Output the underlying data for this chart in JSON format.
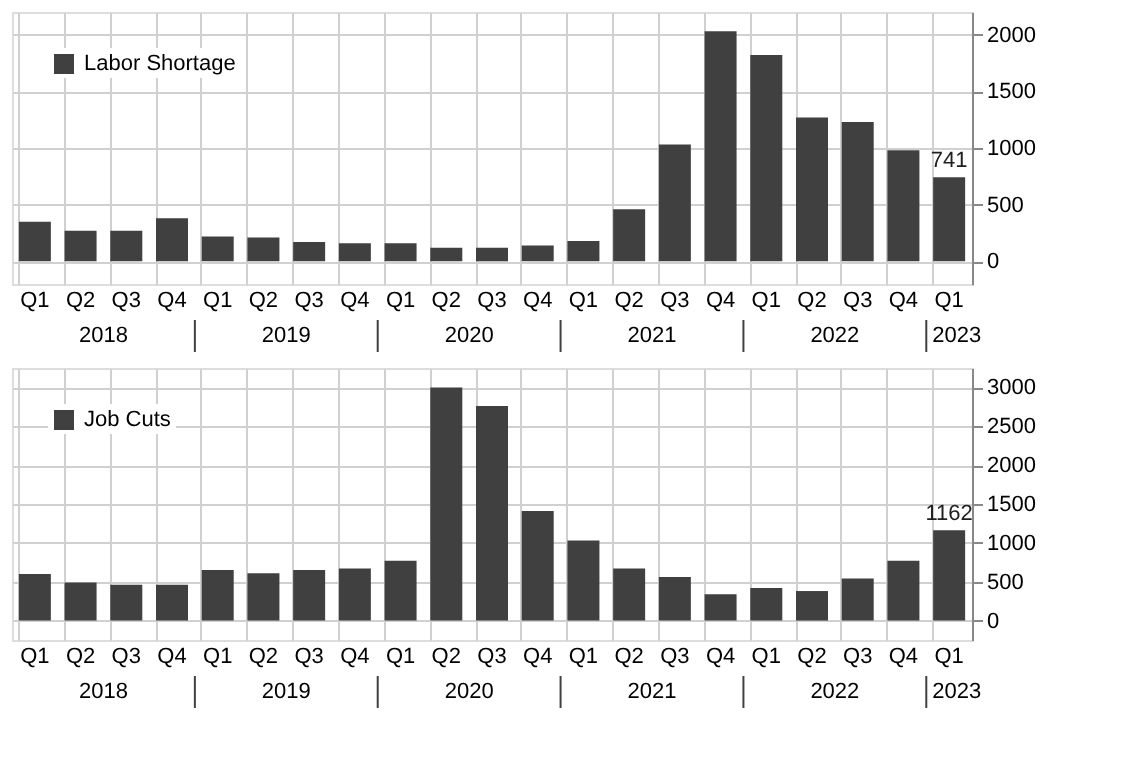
{
  "chart_data": [
    {
      "type": "bar",
      "categories": [
        "Q1",
        "Q2",
        "Q3",
        "Q4",
        "Q1",
        "Q2",
        "Q3",
        "Q4",
        "Q1",
        "Q2",
        "Q3",
        "Q4",
        "Q1",
        "Q2",
        "Q3",
        "Q4",
        "Q1",
        "Q2",
        "Q3",
        "Q4",
        "Q1"
      ],
      "series": [
        {
          "name": "Labor Shortage",
          "color": "#404040",
          "values": [
            350,
            270,
            270,
            380,
            220,
            210,
            170,
            160,
            160,
            120,
            120,
            140,
            180,
            460,
            1030,
            2030,
            1820,
            1270,
            1230,
            980,
            741
          ],
          "value_labels": [
            null,
            null,
            null,
            null,
            null,
            null,
            null,
            null,
            null,
            null,
            null,
            null,
            null,
            null,
            null,
            null,
            null,
            null,
            null,
            null,
            "741"
          ]
        }
      ],
      "annotations": [
        "2018",
        "2019",
        "2020",
        "2021",
        "2022",
        "2023"
      ],
      "ylim": [
        -200,
        2200
      ],
      "yticks": [
        0,
        500,
        1000,
        1500,
        2000
      ],
      "grid": true,
      "legend": "top left"
    },
    {
      "type": "bar",
      "categories": [
        "Q1",
        "Q2",
        "Q3",
        "Q4",
        "Q1",
        "Q2",
        "Q3",
        "Q4",
        "Q1",
        "Q2",
        "Q3",
        "Q4",
        "Q1",
        "Q2",
        "Q3",
        "Q4",
        "Q1",
        "Q2",
        "Q3",
        "Q4",
        "Q1"
      ],
      "series": [
        {
          "name": "Job Cuts",
          "color": "#404040",
          "values": [
            600,
            490,
            460,
            460,
            650,
            610,
            650,
            670,
            770,
            3000,
            2760,
            1410,
            1030,
            670,
            560,
            340,
            420,
            380,
            540,
            770,
            1162
          ],
          "value_labels": [
            null,
            null,
            null,
            null,
            null,
            null,
            null,
            null,
            null,
            null,
            null,
            null,
            null,
            null,
            null,
            null,
            null,
            null,
            null,
            null,
            "1162"
          ]
        }
      ],
      "annotations": [
        "2018",
        "2019",
        "2020",
        "2021",
        "2022",
        "2023"
      ],
      "ylim": [
        -250,
        3250
      ],
      "yticks": [
        0,
        500,
        1000,
        1500,
        2000,
        2500,
        3000
      ],
      "grid": true,
      "legend": "top left"
    }
  ]
}
